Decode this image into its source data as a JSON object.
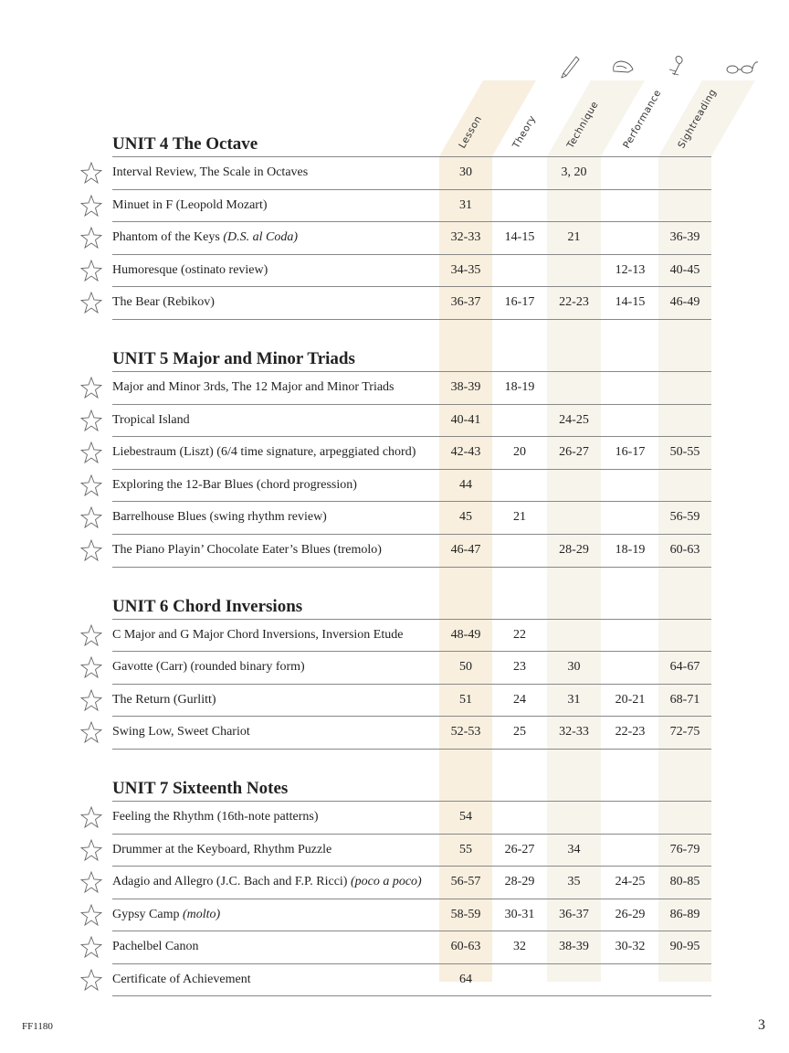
{
  "columns": [
    {
      "label": "Lesson",
      "icon": "",
      "shaded": true,
      "shade": "#f8efdf"
    },
    {
      "label": "Theory",
      "icon": "pencil-icon",
      "shaded": false
    },
    {
      "label": "Technique",
      "icon": "hand-icon",
      "shaded": true,
      "shade": "#f7f4ec"
    },
    {
      "label": "Performance",
      "icon": "rose-icon",
      "shaded": false
    },
    {
      "label": "Sightreading",
      "icon": "glasses-icon",
      "shaded": true,
      "shade": "#f7f4ec"
    }
  ],
  "units": [
    {
      "title": "UNIT 4  The Octave",
      "rows": [
        {
          "title": "Interval Review, The Scale in Octaves",
          "italic": "",
          "values": [
            "30",
            "",
            "3, 20",
            "",
            ""
          ]
        },
        {
          "title": "Minuet in F (Leopold Mozart)",
          "italic": "",
          "values": [
            "31",
            "",
            "",
            "",
            ""
          ]
        },
        {
          "title": "Phantom of the Keys ",
          "italic": "(D.S. al Coda)",
          "values": [
            "32-33",
            "14-15",
            "21",
            "",
            "36-39"
          ]
        },
        {
          "title": "Humoresque (ostinato review)",
          "italic": "",
          "values": [
            "34-35",
            "",
            "",
            "12-13",
            "40-45"
          ]
        },
        {
          "title": "The Bear (Rebikov)",
          "italic": "",
          "values": [
            "36-37",
            "16-17",
            "22-23",
            "14-15",
            "46-49"
          ]
        }
      ]
    },
    {
      "title": "UNIT 5  Major and Minor Triads",
      "rows": [
        {
          "title": "Major and Minor 3rds, The 12 Major and Minor Triads",
          "italic": "",
          "values": [
            "38-39",
            "18-19",
            "",
            "",
            ""
          ]
        },
        {
          "title": "Tropical Island",
          "italic": "",
          "values": [
            "40-41",
            "",
            "24-25",
            "",
            ""
          ]
        },
        {
          "title": "Liebestraum (Liszt) (6/4 time signature, arpeggiated chord)",
          "italic": "",
          "values": [
            "42-43",
            "20",
            "26-27",
            "16-17",
            "50-55"
          ]
        },
        {
          "title": "Exploring the 12-Bar Blues (chord progression)",
          "italic": "",
          "values": [
            "44",
            "",
            "",
            "",
            ""
          ]
        },
        {
          "title": "Barrelhouse Blues (swing rhythm review)",
          "italic": "",
          "values": [
            "45",
            "21",
            "",
            "",
            "56-59"
          ]
        },
        {
          "title": "The Piano Playin’ Chocolate Eater’s Blues (tremolo)",
          "italic": "",
          "values": [
            "46-47",
            "",
            "28-29",
            "18-19",
            "60-63"
          ]
        }
      ]
    },
    {
      "title": "UNIT 6  Chord Inversions",
      "rows": [
        {
          "title": "C Major and G Major Chord Inversions, Inversion Etude",
          "italic": "",
          "values": [
            "48-49",
            "22",
            "",
            "",
            ""
          ]
        },
        {
          "title": "Gavotte (Carr) (rounded binary form)",
          "italic": "",
          "values": [
            "50",
            "23",
            "30",
            "",
            "64-67"
          ]
        },
        {
          "title": "The Return (Gurlitt)",
          "italic": "",
          "values": [
            "51",
            "24",
            "31",
            "20-21",
            "68-71"
          ]
        },
        {
          "title": "Swing Low, Sweet Chariot",
          "italic": "",
          "values": [
            "52-53",
            "25",
            "32-33",
            "22-23",
            "72-75"
          ]
        }
      ]
    },
    {
      "title": "UNIT 7  Sixteenth Notes",
      "rows": [
        {
          "title": "Feeling the Rhythm (16th-note patterns)",
          "italic": "",
          "values": [
            "54",
            "",
            "",
            "",
            ""
          ]
        },
        {
          "title": "Drummer at the Keyboard, Rhythm Puzzle",
          "italic": "",
          "values": [
            "55",
            "26-27",
            "34",
            "",
            "76-79"
          ]
        },
        {
          "title": "Adagio and Allegro (J.C. Bach and F.P. Ricci) ",
          "italic": "(poco a poco)",
          "values": [
            "56-57",
            "28-29",
            "35",
            "24-25",
            "80-85"
          ]
        },
        {
          "title": "Gypsy Camp ",
          "italic": "(molto)",
          "values": [
            "58-59",
            "30-31",
            "36-37",
            "26-29",
            "86-89"
          ]
        },
        {
          "title": "Pachelbel Canon",
          "italic": "",
          "values": [
            "60-63",
            "32",
            "38-39",
            "30-32",
            "90-95"
          ]
        },
        {
          "title": "Certificate of Achievement",
          "italic": "",
          "values": [
            "64",
            "",
            "",
            "",
            ""
          ]
        }
      ]
    }
  ],
  "footer": {
    "code": "FF1180",
    "page": "3"
  }
}
